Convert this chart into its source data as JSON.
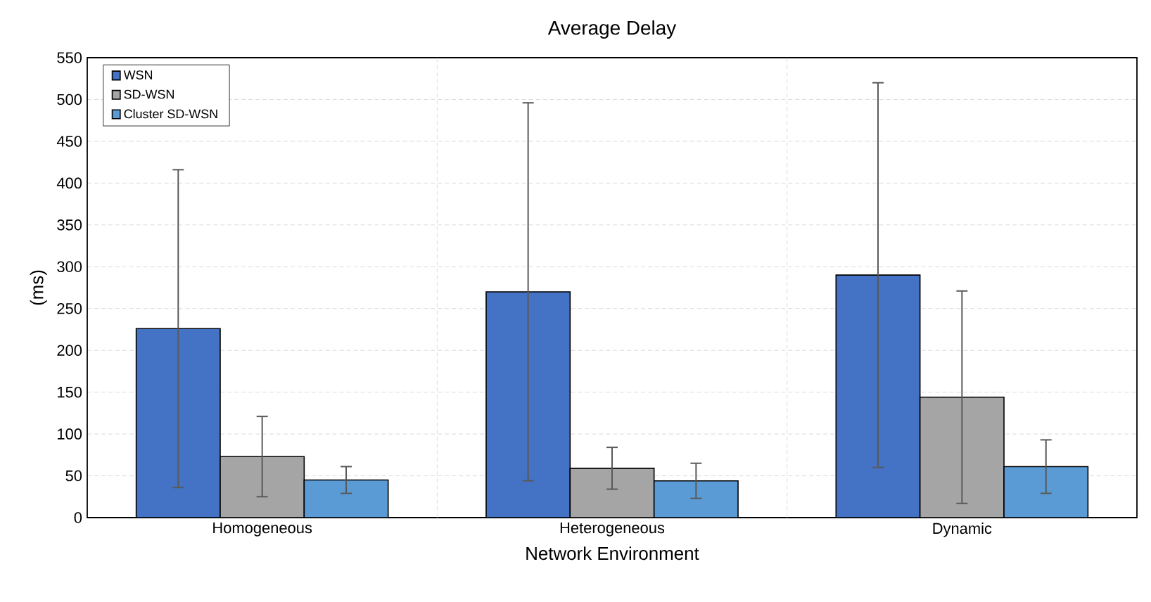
{
  "chart_data": {
    "type": "bar",
    "title": "Average Delay",
    "xlabel": "Network Environment",
    "ylabel": "(ms)",
    "categories": [
      "Homogeneous",
      "Heterogeneous",
      "Dynamic"
    ],
    "series": [
      {
        "name": "WSN",
        "color": "#4472c4",
        "values": [
          226,
          270,
          290
        ],
        "errors": [
          190,
          226,
          230
        ]
      },
      {
        "name": "SD-WSN",
        "color": "#a5a5a5",
        "values": [
          73,
          59,
          144
        ],
        "errors": [
          48,
          25,
          127
        ]
      },
      {
        "name": "Cluster SD-WSN",
        "color": "#5b9bd5",
        "values": [
          45,
          44,
          61
        ],
        "errors": [
          16,
          21,
          32
        ]
      }
    ],
    "ylim": [
      0,
      550
    ],
    "yticks": [
      0,
      50,
      100,
      150,
      200,
      250,
      300,
      350,
      400,
      450,
      500,
      550
    ],
    "grid": true,
    "legend": "top left"
  }
}
